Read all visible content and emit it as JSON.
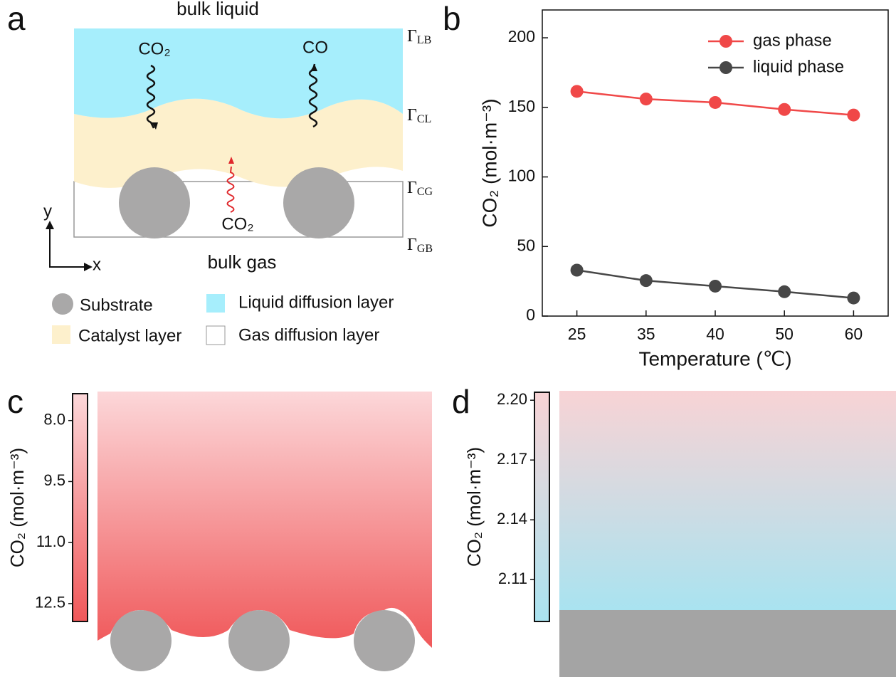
{
  "panel_labels": [
    "a",
    "b",
    "c",
    "d"
  ],
  "panel_a": {
    "top_label": "bulk liquid",
    "bottom_label": "bulk gas",
    "species": [
      "CO₂",
      "CO",
      "CO₂"
    ],
    "boundaries": [
      {
        "symbol": "Γ",
        "sub": "LB"
      },
      {
        "symbol": "Γ",
        "sub": "CL"
      },
      {
        "symbol": "Γ",
        "sub": "CG"
      },
      {
        "symbol": "Γ",
        "sub": "GB"
      }
    ],
    "axes": [
      "y",
      "x"
    ],
    "legend": [
      "Substrate",
      "Liquid diffusion layer",
      "Catalyst layer",
      "Gas diffusion layer"
    ]
  },
  "chart_data": {
    "type": "line",
    "x_label": "Temperature (℃)",
    "y_label": "CO₂ (mol·m⁻³)",
    "categories": [
      "25",
      "35",
      "40",
      "50",
      "60"
    ],
    "series": [
      {
        "name": "gas phase",
        "color": "#f04848",
        "values": [
          161.5,
          156,
          153.5,
          148.5,
          144.5
        ]
      },
      {
        "name": "liquid phase",
        "color": "#474747",
        "values": [
          33,
          25.5,
          21.5,
          17.5,
          13
        ]
      }
    ],
    "ylim": [
      0,
      220
    ],
    "yticks": [
      0,
      50,
      100,
      150,
      200
    ],
    "legend": "upper right"
  },
  "panel_c": {
    "colorbar": {
      "label": "CO₂ (mol·m⁻³)",
      "clim": [
        7.34,
        12.94
      ],
      "colors": [
        "#fcd7d9",
        "#f0585a"
      ],
      "ticks": [
        {
          "value": 8,
          "label": "8.0"
        },
        {
          "value": 9.5,
          "label": "9.5"
        },
        {
          "value": 11,
          "label": "11.0"
        },
        {
          "value": 12.5,
          "label": "12.5"
        }
      ]
    }
  },
  "panel_d": {
    "colorbar": {
      "label": "CO₂ (mol·m⁻³)",
      "clim": [
        2.089,
        2.204
      ],
      "colors": [
        "#a9e3f0",
        "#f8d3d5"
      ],
      "ticks": [
        {
          "value": 2.2,
          "label": "2.20"
        },
        {
          "value": 2.17,
          "label": "2.17"
        },
        {
          "value": 2.14,
          "label": "2.14"
        },
        {
          "value": 2.11,
          "label": "2.11"
        }
      ]
    }
  }
}
